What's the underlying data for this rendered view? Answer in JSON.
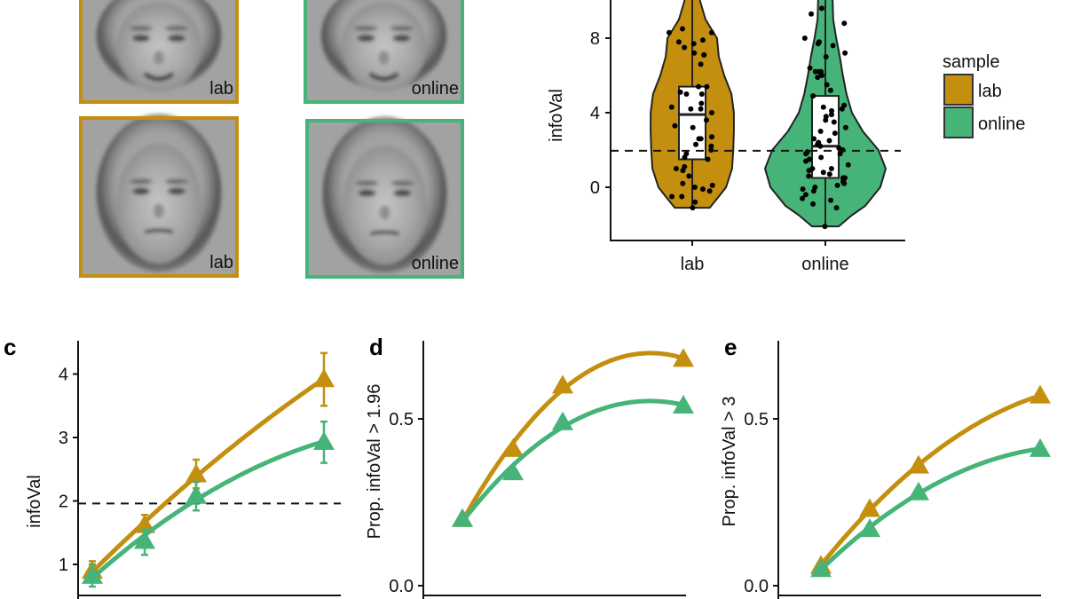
{
  "colors": {
    "lab": "#c48f0e",
    "online": "#46b478",
    "axis": "#111111"
  },
  "panel_a": {
    "tiles": [
      {
        "label": "lab",
        "sample": "lab",
        "expression": "smiling"
      },
      {
        "label": "online",
        "sample": "online",
        "expression": "smiling"
      },
      {
        "label": "lab",
        "sample": "lab",
        "expression": "neutral"
      },
      {
        "label": "online",
        "sample": "online",
        "expression": "neutral"
      }
    ]
  },
  "chart_data": [
    {
      "type": "violin",
      "ylabel": "infoVal",
      "categories": [
        "lab",
        "online"
      ],
      "yticks": [
        0,
        4,
        8
      ],
      "ylim": [
        -2.9,
        10
      ],
      "reference_line": 1.96,
      "legend": {
        "title": "sample",
        "entries": [
          "lab",
          "online"
        ],
        "placement": "right"
      },
      "violins": [
        {
          "category": "lab",
          "density": [
            [
              -1.1,
              0.29
            ],
            [
              -0.5,
              0.44
            ],
            [
              0,
              0.56
            ],
            [
              1,
              0.66
            ],
            [
              2,
              0.68
            ],
            [
              3,
              0.69
            ],
            [
              4,
              0.69
            ],
            [
              5,
              0.65
            ],
            [
              6,
              0.53
            ],
            [
              7,
              0.44
            ],
            [
              8,
              0.41
            ],
            [
              9,
              0.22
            ],
            [
              10,
              0.13
            ],
            [
              11,
              0.1
            ]
          ],
          "box": {
            "q1": 1.5,
            "median": 3.9,
            "q3": 5.4
          },
          "points": [
            8.3,
            8.3,
            8.5,
            7.8,
            7.9,
            7.7,
            7.5,
            7.1,
            7.1,
            7.2,
            6.6,
            5.4,
            5.4,
            5.1,
            5.0,
            5.0,
            4.5,
            4.3,
            4.2,
            4.2,
            4.0,
            3.6,
            3.3,
            3.2,
            2.7,
            2.6,
            2.6,
            2.3,
            2.2,
            2.0,
            1.8,
            1.6,
            1.5,
            1.1,
            1.0,
            0.9,
            0.6,
            0.2,
            0.1,
            0,
            -0.1,
            -0.2,
            -0.5,
            -0.5,
            -0.8,
            -1.1
          ]
        },
        {
          "category": "online",
          "density": [
            [
              -2.1,
              0.22
            ],
            [
              -1.5,
              0.44
            ],
            [
              -1,
              0.66
            ],
            [
              0,
              0.91
            ],
            [
              1,
              1.0
            ],
            [
              2,
              0.88
            ],
            [
              3,
              0.62
            ],
            [
              4,
              0.44
            ],
            [
              5,
              0.35
            ],
            [
              6,
              0.29
            ],
            [
              7,
              0.24
            ],
            [
              8,
              0.18
            ],
            [
              9,
              0.13
            ],
            [
              10,
              0.12
            ],
            [
              11,
              0.1
            ]
          ],
          "box": {
            "q1": 0.5,
            "median": 2.2,
            "q3": 4.9
          },
          "points": [
            9.6,
            9.3,
            8.8,
            8.0,
            7.8,
            7.7,
            7.6,
            7.2,
            7.0,
            6.4,
            6.2,
            6.2,
            6.2,
            6.0,
            5.9,
            5.5,
            5.2,
            4.9,
            4.4,
            4.3,
            4.2,
            4.1,
            3.9,
            3.8,
            3.6,
            3.5,
            3.2,
            3.0,
            2.9,
            2.6,
            2.5,
            2.4,
            2.3,
            2.2,
            2.1,
            2.0,
            1.9,
            1.8,
            1.8,
            1.6,
            1.5,
            1.4,
            1.2,
            1.0,
            1.0,
            0.9,
            0.8,
            0.7,
            0.6,
            0.5,
            0.5,
            0.4,
            0.3,
            0.2,
            0.1,
            0,
            -0.1,
            -0.2,
            -0.4,
            -0.6,
            -0.7,
            -0.9,
            -1.1,
            -2.1
          ]
        }
      ]
    },
    {
      "type": "line",
      "panel_letter": "c",
      "ylabel": "infoVal",
      "yticks": [
        1,
        2,
        3,
        4
      ],
      "ylim": [
        0.53,
        4.52
      ],
      "reference_line": 1.96,
      "x": [
        1,
        2,
        3,
        5.5
      ],
      "series": [
        {
          "sample": "lab",
          "values": [
            0.9,
            1.62,
            2.42,
            3.92
          ],
          "err_low": [
            0.75,
            1.45,
            2.2,
            3.5
          ],
          "err_high": [
            1.05,
            1.78,
            2.65,
            4.33
          ]
        },
        {
          "sample": "online",
          "values": [
            0.82,
            1.37,
            2.08,
            2.93
          ],
          "err_low": [
            0.65,
            1.15,
            1.85,
            2.6
          ],
          "err_high": [
            1.0,
            1.55,
            2.3,
            3.25
          ]
        }
      ]
    },
    {
      "type": "line",
      "panel_letter": "d",
      "ylabel": "Prop. infoVal > 1.96",
      "yticks": [
        "0.0",
        "0.5"
      ],
      "ylim": [
        -0.03,
        0.73
      ],
      "x": [
        1,
        2,
        3,
        5.5
      ],
      "series": [
        {
          "sample": "lab",
          "values": [
            0.2,
            0.41,
            0.6,
            0.68
          ]
        },
        {
          "sample": "online",
          "values": [
            0.2,
            0.34,
            0.49,
            0.54
          ]
        }
      ]
    },
    {
      "type": "line",
      "panel_letter": "e",
      "ylabel": "Prop. infoVal > 3",
      "yticks": [
        "0.0",
        "0.5"
      ],
      "ylim": [
        -0.03,
        0.73
      ],
      "x": [
        1,
        2,
        3,
        5.5
      ],
      "series": [
        {
          "sample": "lab",
          "values": [
            0.06,
            0.23,
            0.36,
            0.57
          ]
        },
        {
          "sample": "online",
          "values": [
            0.05,
            0.17,
            0.28,
            0.41
          ]
        }
      ]
    }
  ]
}
